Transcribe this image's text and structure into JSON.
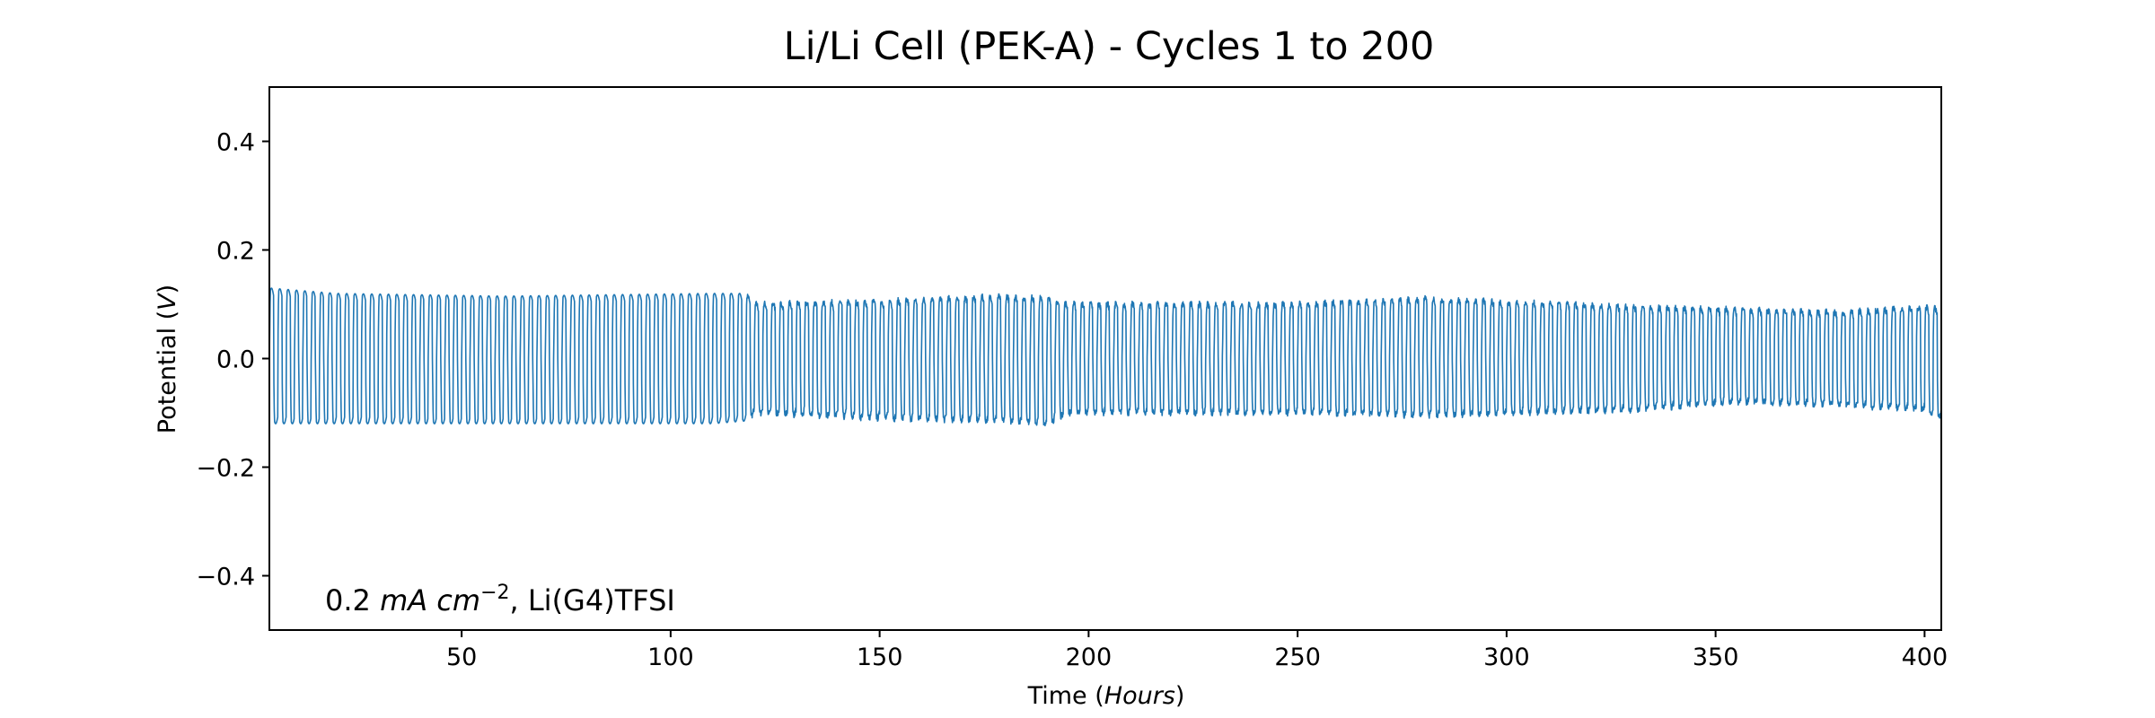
{
  "chart_data": {
    "type": "line",
    "title": "Li/Li Cell (PEK-A) - Cycles 1 to 200",
    "xlabel": "Time (Hours)",
    "ylabel": "Potential (V)",
    "xlim": [
      4,
      404
    ],
    "ylim": [
      -0.5,
      0.5
    ],
    "xticks": [
      50,
      100,
      150,
      200,
      250,
      300,
      350,
      400
    ],
    "xtick_labels": [
      "50",
      "100",
      "150",
      "200",
      "250",
      "300",
      "350",
      "400"
    ],
    "yticks": [
      -0.4,
      -0.2,
      0.0,
      0.2,
      0.4
    ],
    "ytick_labels": [
      "−0.4",
      "−0.2",
      "0.0",
      "0.2",
      "0.4"
    ],
    "annotation": "0.2 mA cm−2, Li(G4)TFSI",
    "grid": false,
    "series": [
      {
        "color": "#1f77b4",
        "cycle_period_hours": 2,
        "x_start": 4,
        "x_end": 404,
        "amplitude_profile": [
          {
            "x": 4,
            "upper": 0.13,
            "lower": -0.12
          },
          {
            "x": 20,
            "upper": 0.12,
            "lower": -0.12
          },
          {
            "x": 60,
            "upper": 0.115,
            "lower": -0.12
          },
          {
            "x": 110,
            "upper": 0.12,
            "lower": -0.12
          },
          {
            "x": 118,
            "upper": 0.12,
            "lower": -0.115
          },
          {
            "x": 120,
            "upper": 0.1,
            "lower": -0.1
          },
          {
            "x": 150,
            "upper": 0.105,
            "lower": -0.11
          },
          {
            "x": 180,
            "upper": 0.115,
            "lower": -0.115
          },
          {
            "x": 190,
            "upper": 0.11,
            "lower": -0.12
          },
          {
            "x": 195,
            "upper": 0.1,
            "lower": -0.1
          },
          {
            "x": 250,
            "upper": 0.1,
            "lower": -0.1
          },
          {
            "x": 280,
            "upper": 0.11,
            "lower": -0.105
          },
          {
            "x": 330,
            "upper": 0.095,
            "lower": -0.095
          },
          {
            "x": 355,
            "upper": 0.09,
            "lower": -0.08
          },
          {
            "x": 380,
            "upper": 0.085,
            "lower": -0.085
          },
          {
            "x": 400,
            "upper": 0.095,
            "lower": -0.095
          },
          {
            "x": 404,
            "upper": 0.09,
            "lower": -0.11
          }
        ]
      }
    ]
  }
}
